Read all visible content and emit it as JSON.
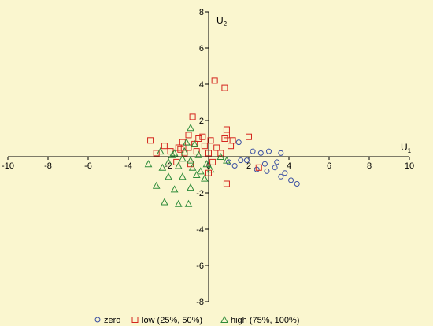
{
  "chart_data": {
    "type": "scatter",
    "xlabel": {
      "main": "U",
      "sub": "1"
    },
    "ylabel": {
      "main": "U",
      "sub": "2"
    },
    "xlim": [
      -10,
      10
    ],
    "ylim": [
      -8,
      8
    ],
    "x_ticks": [
      -10,
      -8,
      -6,
      -4,
      -2,
      0,
      2,
      4,
      6,
      8,
      10
    ],
    "y_ticks": [
      -8,
      -6,
      -4,
      -2,
      0,
      2,
      4,
      6,
      8
    ],
    "x_tick_labels": [
      "-10",
      "-8",
      "-6",
      "-4",
      "-2",
      "0",
      "2",
      "4",
      "6",
      "8",
      "10"
    ],
    "y_tick_labels": [
      "-8",
      "-6",
      "-4",
      "-2",
      "0",
      "2",
      "4",
      "6",
      "8"
    ],
    "grid": false,
    "legend_position": "bottom",
    "series": [
      {
        "name": "zero",
        "marker": "circle",
        "color": "#3a4fa3",
        "points": [
          [
            1.5,
            0.8
          ],
          [
            2.2,
            0.3
          ],
          [
            2.6,
            0.2
          ],
          [
            3.0,
            0.3
          ],
          [
            3.6,
            0.2
          ],
          [
            1.0,
            -0.3
          ],
          [
            1.3,
            -0.5
          ],
          [
            1.6,
            -0.2
          ],
          [
            2.4,
            -0.7
          ],
          [
            2.9,
            -0.8
          ],
          [
            3.3,
            -0.6
          ],
          [
            3.6,
            -1.1
          ],
          [
            3.8,
            -0.9
          ],
          [
            4.1,
            -1.3
          ],
          [
            4.4,
            -1.5
          ],
          [
            1.9,
            -0.2
          ],
          [
            2.8,
            -0.4
          ],
          [
            3.4,
            -0.3
          ]
        ]
      },
      {
        "name": "low (25%, 50%)",
        "marker": "square",
        "color": "#d4261e",
        "points": [
          [
            0.3,
            4.2
          ],
          [
            0.8,
            3.8
          ],
          [
            -0.8,
            2.2
          ],
          [
            0.9,
            1.5
          ],
          [
            0.9,
            1.2
          ],
          [
            2.0,
            1.1
          ],
          [
            -2.9,
            0.9
          ],
          [
            -1.0,
            1.2
          ],
          [
            -0.5,
            1.0
          ],
          [
            0.1,
            0.9
          ],
          [
            -1.3,
            0.8
          ],
          [
            -0.7,
            0.7
          ],
          [
            -2.2,
            0.6
          ],
          [
            -1.5,
            0.5
          ],
          [
            -1.0,
            0.5
          ],
          [
            -0.2,
            0.6
          ],
          [
            0.4,
            0.5
          ],
          [
            1.1,
            0.6
          ],
          [
            -2.6,
            0.2
          ],
          [
            -1.9,
            0.3
          ],
          [
            -1.2,
            0.2
          ],
          [
            -0.6,
            0.3
          ],
          [
            0.0,
            0.2
          ],
          [
            0.6,
            0.2
          ],
          [
            -1.6,
            -0.3
          ],
          [
            -0.9,
            -0.4
          ],
          [
            0.2,
            -0.3
          ],
          [
            1.2,
            0.9
          ],
          [
            0.9,
            -1.5
          ],
          [
            2.5,
            -0.6
          ],
          [
            -1.4,
            0.4
          ],
          [
            0.0,
            -0.9
          ],
          [
            0.8,
            1.0
          ],
          [
            -0.3,
            1.1
          ]
        ]
      },
      {
        "name": "high (75%, 100%)",
        "marker": "triangle",
        "color": "#2e8b3a",
        "points": [
          [
            -0.9,
            1.6
          ],
          [
            -1.1,
            0.8
          ],
          [
            -0.7,
            0.7
          ],
          [
            -2.4,
            0.3
          ],
          [
            -1.7,
            0.2
          ],
          [
            -1.3,
            -0.1
          ],
          [
            -0.9,
            -0.2
          ],
          [
            -0.5,
            0.1
          ],
          [
            -3.0,
            -0.4
          ],
          [
            -2.3,
            -0.6
          ],
          [
            -1.5,
            -0.5
          ],
          [
            -0.8,
            -0.6
          ],
          [
            -0.1,
            -0.4
          ],
          [
            -2.0,
            -1.1
          ],
          [
            -1.3,
            -1.1
          ],
          [
            -0.6,
            -1.0
          ],
          [
            -2.6,
            -1.6
          ],
          [
            -1.7,
            -1.8
          ],
          [
            -0.9,
            -1.7
          ],
          [
            -0.2,
            -1.2
          ],
          [
            -2.2,
            -2.5
          ],
          [
            -1.5,
            -2.6
          ],
          [
            -1.0,
            -2.6
          ],
          [
            0.1,
            -0.7
          ],
          [
            0.6,
            0.0
          ],
          [
            0.9,
            -0.2
          ],
          [
            -1.8,
            0.1
          ],
          [
            -2.0,
            -0.3
          ],
          [
            -0.4,
            -0.8
          ],
          [
            -1.2,
            0.3
          ]
        ]
      }
    ]
  }
}
